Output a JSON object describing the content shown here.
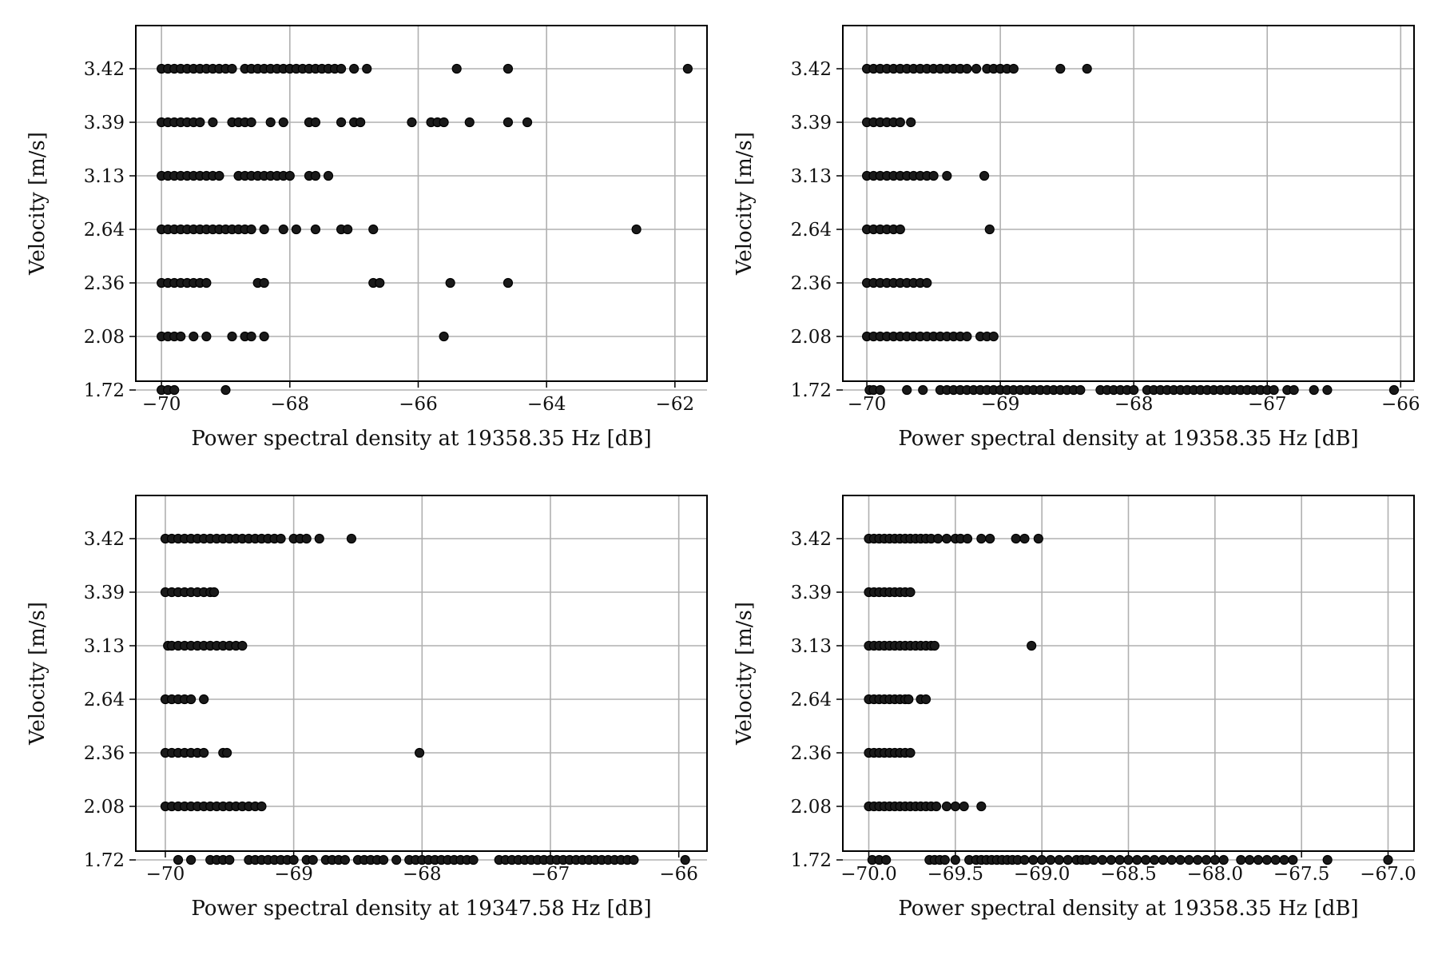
{
  "chart_data": [
    {
      "type": "scatter",
      "xlabel": "Power spectral density at 19358.35 Hz [dB]",
      "ylabel": "Velocity [m/s]",
      "xlim": [
        -70.4,
        -61.5
      ],
      "x_ticks": [
        -70,
        -68,
        -66,
        -64,
        -62
      ],
      "x_tick_labels": [
        "−70",
        "−68",
        "−66",
        "−64",
        "−62"
      ],
      "y_categories": [
        "1.72",
        "2.08",
        "2.36",
        "2.64",
        "3.13",
        "3.39",
        "3.42"
      ],
      "grid": true,
      "marker_color": "#000000",
      "series": [
        {
          "y": "3.42",
          "x": [
            -70.0,
            -69.9,
            -69.8,
            -69.7,
            -69.6,
            -69.5,
            -69.4,
            -69.3,
            -69.2,
            -69.1,
            -69.0,
            -68.9,
            -68.7,
            -68.6,
            -68.5,
            -68.4,
            -68.3,
            -68.2,
            -68.1,
            -68.0,
            -67.9,
            -67.8,
            -67.7,
            -67.6,
            -67.5,
            -67.4,
            -67.3,
            -67.2,
            -67.0,
            -66.8,
            -65.4,
            -64.6,
            -61.8
          ]
        },
        {
          "y": "3.39",
          "x": [
            -70.0,
            -69.9,
            -69.8,
            -69.7,
            -69.6,
            -69.5,
            -69.4,
            -69.2,
            -68.9,
            -68.8,
            -68.7,
            -68.6,
            -68.3,
            -68.1,
            -67.7,
            -67.6,
            -67.2,
            -67.0,
            -66.9,
            -66.1,
            -65.8,
            -65.7,
            -65.6,
            -65.2,
            -64.6,
            -64.3
          ]
        },
        {
          "y": "3.13",
          "x": [
            -70.0,
            -69.9,
            -69.8,
            -69.7,
            -69.6,
            -69.5,
            -69.4,
            -69.3,
            -69.2,
            -69.1,
            -68.8,
            -68.7,
            -68.6,
            -68.5,
            -68.4,
            -68.3,
            -68.2,
            -68.1,
            -68.0,
            -67.7,
            -67.6,
            -67.4
          ]
        },
        {
          "y": "2.64",
          "x": [
            -70.0,
            -69.9,
            -69.8,
            -69.7,
            -69.6,
            -69.5,
            -69.4,
            -69.3,
            -69.2,
            -69.1,
            -69.0,
            -68.9,
            -68.8,
            -68.7,
            -68.6,
            -68.4,
            -68.1,
            -67.9,
            -67.6,
            -67.2,
            -67.1,
            -66.7,
            -62.6
          ]
        },
        {
          "y": "2.36",
          "x": [
            -70.0,
            -69.9,
            -69.8,
            -69.7,
            -69.6,
            -69.5,
            -69.4,
            -69.3,
            -68.5,
            -68.4,
            -66.7,
            -66.6,
            -65.5,
            -64.6
          ]
        },
        {
          "y": "2.08",
          "x": [
            -70.0,
            -69.9,
            -69.8,
            -69.7,
            -69.5,
            -69.3,
            -68.9,
            -68.7,
            -68.6,
            -68.4,
            -65.6
          ]
        },
        {
          "y": "1.72",
          "x": [
            -70.0,
            -69.9,
            -69.8,
            -69.0
          ]
        }
      ]
    },
    {
      "type": "scatter",
      "xlabel": "Power spectral density at 19358.35 Hz [dB]",
      "ylabel": "Velocity [m/s]",
      "xlim": [
        -70.18,
        -65.9
      ],
      "x_ticks": [
        -70,
        -69,
        -68,
        -67,
        -66
      ],
      "x_tick_labels": [
        "−70",
        "−69",
        "−68",
        "−67",
        "−66"
      ],
      "y_categories": [
        "1.72",
        "2.08",
        "2.36",
        "2.64",
        "3.13",
        "3.39",
        "3.42"
      ],
      "grid": true,
      "marker_color": "#000000",
      "series": [
        {
          "y": "3.42",
          "x": [
            -70.0,
            -69.95,
            -69.9,
            -69.85,
            -69.8,
            -69.75,
            -69.7,
            -69.65,
            -69.6,
            -69.55,
            -69.5,
            -69.45,
            -69.4,
            -69.35,
            -69.3,
            -69.25,
            -69.18,
            -69.1,
            -69.05,
            -69.0,
            -68.95,
            -68.9,
            -68.55,
            -68.35
          ]
        },
        {
          "y": "3.39",
          "x": [
            -70.0,
            -69.95,
            -69.9,
            -69.85,
            -69.8,
            -69.75,
            -69.67
          ]
        },
        {
          "y": "3.13",
          "x": [
            -70.0,
            -69.95,
            -69.9,
            -69.85,
            -69.8,
            -69.75,
            -69.7,
            -69.65,
            -69.6,
            -69.55,
            -69.5,
            -69.4,
            -69.12
          ]
        },
        {
          "y": "2.64",
          "x": [
            -70.0,
            -69.95,
            -69.9,
            -69.85,
            -69.8,
            -69.75,
            -69.08
          ]
        },
        {
          "y": "2.36",
          "x": [
            -70.0,
            -69.95,
            -69.9,
            -69.85,
            -69.8,
            -69.75,
            -69.7,
            -69.65,
            -69.6,
            -69.55
          ]
        },
        {
          "y": "2.08",
          "x": [
            -70.0,
            -69.95,
            -69.9,
            -69.85,
            -69.8,
            -69.75,
            -69.7,
            -69.65,
            -69.6,
            -69.55,
            -69.5,
            -69.45,
            -69.4,
            -69.35,
            -69.3,
            -69.25,
            -69.15,
            -69.1,
            -69.05
          ]
        },
        {
          "y": "1.72",
          "x": [
            -69.98,
            -69.95,
            -69.9,
            -69.7,
            -69.58,
            -69.45,
            -69.4,
            -69.35,
            -69.3,
            -69.25,
            -69.2,
            -69.15,
            -69.1,
            -69.05,
            -69.0,
            -68.95,
            -68.9,
            -68.85,
            -68.8,
            -68.75,
            -68.7,
            -68.65,
            -68.6,
            -68.55,
            -68.5,
            -68.45,
            -68.4,
            -68.25,
            -68.2,
            -68.15,
            -68.1,
            -68.05,
            -68.0,
            -67.9,
            -67.85,
            -67.8,
            -67.75,
            -67.7,
            -67.65,
            -67.6,
            -67.55,
            -67.5,
            -67.45,
            -67.4,
            -67.35,
            -67.3,
            -67.25,
            -67.2,
            -67.15,
            -67.1,
            -67.05,
            -67.0,
            -66.95,
            -66.85,
            -66.8,
            -66.65,
            -66.55,
            -66.05
          ]
        }
      ]
    },
    {
      "type": "scatter",
      "xlabel": "Power spectral density at 19347.58 Hz [dB]",
      "ylabel": "Velocity [m/s]",
      "xlim": [
        -70.23,
        -65.78
      ],
      "x_ticks": [
        -70,
        -69,
        -68,
        -67,
        -66
      ],
      "x_tick_labels": [
        "−70",
        "−69",
        "−68",
        "−67",
        "−66"
      ],
      "y_categories": [
        "1.72",
        "2.08",
        "2.36",
        "2.64",
        "3.13",
        "3.39",
        "3.42"
      ],
      "grid": true,
      "marker_color": "#000000",
      "series": [
        {
          "y": "3.42",
          "x": [
            -70.0,
            -69.95,
            -69.9,
            -69.85,
            -69.8,
            -69.75,
            -69.7,
            -69.65,
            -69.6,
            -69.55,
            -69.5,
            -69.45,
            -69.4,
            -69.35,
            -69.3,
            -69.25,
            -69.2,
            -69.15,
            -69.1,
            -69.0,
            -68.95,
            -68.9,
            -68.8,
            -68.55
          ]
        },
        {
          "y": "3.39",
          "x": [
            -70.0,
            -69.95,
            -69.9,
            -69.85,
            -69.8,
            -69.75,
            -69.7,
            -69.65,
            -69.62
          ]
        },
        {
          "y": "3.13",
          "x": [
            -69.98,
            -69.95,
            -69.9,
            -69.85,
            -69.8,
            -69.75,
            -69.7,
            -69.65,
            -69.6,
            -69.55,
            -69.5,
            -69.45,
            -69.4
          ]
        },
        {
          "y": "2.64",
          "x": [
            -70.0,
            -69.95,
            -69.9,
            -69.85,
            -69.8,
            -69.7
          ]
        },
        {
          "y": "2.36",
          "x": [
            -70.0,
            -69.95,
            -69.9,
            -69.85,
            -69.8,
            -69.75,
            -69.7,
            -69.55,
            -69.52,
            -68.02
          ]
        },
        {
          "y": "2.08",
          "x": [
            -70.0,
            -69.95,
            -69.9,
            -69.85,
            -69.8,
            -69.75,
            -69.7,
            -69.65,
            -69.6,
            -69.55,
            -69.5,
            -69.45,
            -69.4,
            -69.35,
            -69.3,
            -69.25
          ]
        },
        {
          "y": "1.72",
          "x": [
            -69.9,
            -69.8,
            -69.65,
            -69.6,
            -69.55,
            -69.5,
            -69.35,
            -69.3,
            -69.25,
            -69.2,
            -69.15,
            -69.1,
            -69.05,
            -69.0,
            -68.9,
            -68.85,
            -68.75,
            -68.7,
            -68.65,
            -68.6,
            -68.5,
            -68.45,
            -68.4,
            -68.35,
            -68.3,
            -68.2,
            -68.1,
            -68.05,
            -68.0,
            -67.95,
            -67.9,
            -67.85,
            -67.8,
            -67.75,
            -67.7,
            -67.65,
            -67.6,
            -67.4,
            -67.35,
            -67.3,
            -67.25,
            -67.2,
            -67.15,
            -67.1,
            -67.05,
            -67.0,
            -66.95,
            -66.9,
            -66.85,
            -66.8,
            -66.75,
            -66.7,
            -66.65,
            -66.6,
            -66.55,
            -66.5,
            -66.45,
            -66.4,
            -66.35,
            -65.95
          ]
        }
      ]
    },
    {
      "type": "scatter",
      "xlabel": "Power spectral density at 19358.35 Hz [dB]",
      "ylabel": "Velocity [m/s]",
      "xlim": [
        -70.15,
        -66.85
      ],
      "x_ticks": [
        -70.0,
        -69.5,
        -69.0,
        -68.5,
        -68.0,
        -67.5,
        -67.0
      ],
      "x_tick_labels": [
        "−70.0",
        "−69.5",
        "−69.0",
        "−68.5",
        "−68.0",
        "−67.5",
        "−67.0"
      ],
      "y_categories": [
        "1.72",
        "2.08",
        "2.36",
        "2.64",
        "3.13",
        "3.39",
        "3.42"
      ],
      "grid": true,
      "marker_color": "#000000",
      "series": [
        {
          "y": "3.42",
          "x": [
            -70.0,
            -69.97,
            -69.94,
            -69.91,
            -69.88,
            -69.85,
            -69.82,
            -69.79,
            -69.76,
            -69.73,
            -69.7,
            -69.67,
            -69.64,
            -69.6,
            -69.55,
            -69.5,
            -69.47,
            -69.43,
            -69.35,
            -69.3,
            -69.15,
            -69.1,
            -69.02
          ]
        },
        {
          "y": "3.39",
          "x": [
            -70.0,
            -69.97,
            -69.94,
            -69.91,
            -69.88,
            -69.85,
            -69.82,
            -69.79,
            -69.76
          ]
        },
        {
          "y": "3.13",
          "x": [
            -70.0,
            -69.97,
            -69.94,
            -69.91,
            -69.88,
            -69.85,
            -69.82,
            -69.79,
            -69.76,
            -69.73,
            -69.7,
            -69.67,
            -69.64,
            -69.62,
            -69.06
          ]
        },
        {
          "y": "2.64",
          "x": [
            -70.0,
            -69.97,
            -69.94,
            -69.91,
            -69.88,
            -69.85,
            -69.82,
            -69.79,
            -69.77,
            -69.7,
            -69.67
          ]
        },
        {
          "y": "2.36",
          "x": [
            -70.0,
            -69.97,
            -69.94,
            -69.91,
            -69.88,
            -69.85,
            -69.82,
            -69.79,
            -69.76
          ]
        },
        {
          "y": "2.08",
          "x": [
            -70.0,
            -69.97,
            -69.94,
            -69.91,
            -69.88,
            -69.85,
            -69.82,
            -69.79,
            -69.76,
            -69.73,
            -69.7,
            -69.67,
            -69.64,
            -69.61,
            -69.55,
            -69.5,
            -69.45,
            -69.35
          ]
        },
        {
          "y": "1.72",
          "x": [
            -69.98,
            -69.94,
            -69.9,
            -69.65,
            -69.62,
            -69.59,
            -69.56,
            -69.5,
            -69.42,
            -69.38,
            -69.35,
            -69.32,
            -69.29,
            -69.26,
            -69.23,
            -69.2,
            -69.17,
            -69.14,
            -69.1,
            -69.05,
            -69.0,
            -68.95,
            -68.9,
            -68.85,
            -68.8,
            -68.77,
            -68.74,
            -68.7,
            -68.65,
            -68.6,
            -68.55,
            -68.5,
            -68.45,
            -68.4,
            -68.35,
            -68.3,
            -68.25,
            -68.2,
            -68.15,
            -68.1,
            -68.05,
            -68.0,
            -67.95,
            -67.85,
            -67.8,
            -67.75,
            -67.7,
            -67.65,
            -67.6,
            -67.55,
            -67.35,
            -67.0
          ]
        }
      ]
    }
  ]
}
